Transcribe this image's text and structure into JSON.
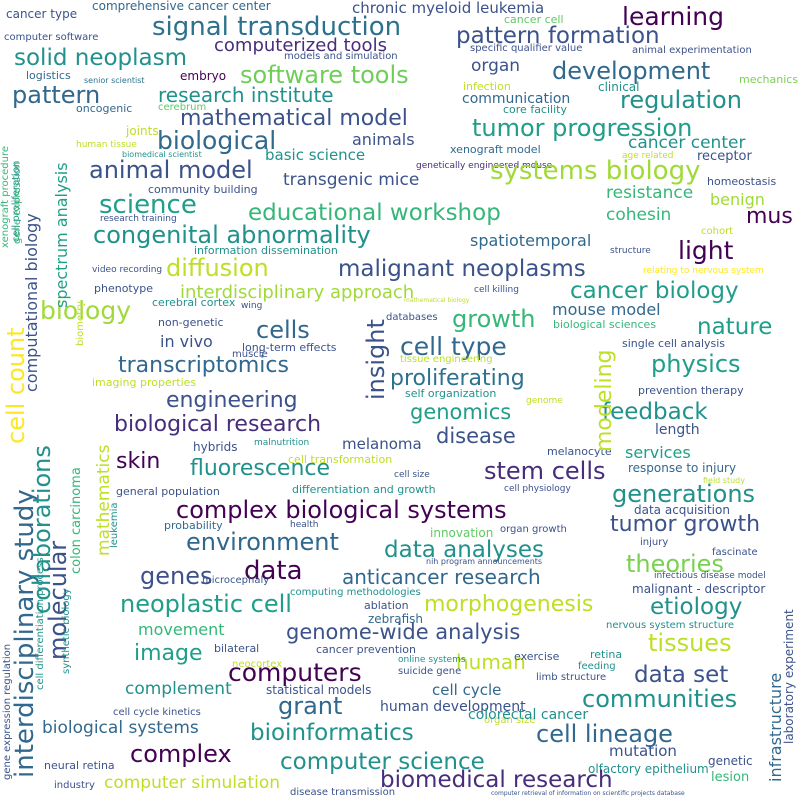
{
  "words": [
    {
      "text": "cancer type",
      "color": "#3b528b",
      "rot": 0
    },
    {
      "text": "comprehensive cancer center",
      "color": "#31688e",
      "rot": 0
    },
    {
      "text": "chronic myeloid leukemia",
      "color": "#3b528b",
      "rot": 0
    },
    {
      "text": "cancer cell",
      "color": "#5ec962",
      "rot": 0
    },
    {
      "text": "learning",
      "color": "#440154",
      "rot": 0
    },
    {
      "text": "computer software",
      "color": "#3b528b",
      "rot": 0
    },
    {
      "text": "signal transduction",
      "color": "#2c728e",
      "rot": 0
    },
    {
      "text": "pattern formation",
      "color": "#3b528b",
      "rot": 0
    },
    {
      "text": "computerized tools",
      "color": "#472d7b",
      "rot": 0
    },
    {
      "text": "specific qualifier value",
      "color": "#3b528b",
      "rot": 0
    },
    {
      "text": "animal experimentation",
      "color": "#3b528b",
      "rot": 0
    },
    {
      "text": "solid neoplasm",
      "color": "#21918c",
      "rot": 0
    },
    {
      "text": "models and simulation",
      "color": "#3b528b",
      "rot": 0
    },
    {
      "text": "organ",
      "color": "#3b528b",
      "rot": 0
    },
    {
      "text": "logistics",
      "color": "#31688e",
      "rot": 0
    },
    {
      "text": "embryo",
      "color": "#440154",
      "rot": 0
    },
    {
      "text": "software tools",
      "color": "#6ece58",
      "rot": 0
    },
    {
      "text": "development",
      "color": "#31688e",
      "rot": 0
    },
    {
      "text": "senior scientist",
      "color": "#2c728e",
      "rot": 0
    },
    {
      "text": "clinical",
      "color": "#21918c",
      "rot": 0
    },
    {
      "text": "mechanics",
      "color": "#7ad151",
      "rot": 0
    },
    {
      "text": "infection",
      "color": "#bddf26",
      "rot": 0
    },
    {
      "text": "pattern",
      "color": "#31688e",
      "rot": 0
    },
    {
      "text": "research institute",
      "color": "#21918c",
      "rot": 0
    },
    {
      "text": "communication",
      "color": "#31688e",
      "rot": 0
    },
    {
      "text": "regulation",
      "color": "#21918c",
      "rot": 0
    },
    {
      "text": "oncogenic",
      "color": "#31688e",
      "rot": 0
    },
    {
      "text": "cerebrum",
      "color": "#5ec962",
      "rot": 0
    },
    {
      "text": "core facility",
      "color": "#21918c",
      "rot": 0
    },
    {
      "text": "mathematical model",
      "color": "#3b528b",
      "rot": 0
    },
    {
      "text": "tumor progression",
      "color": "#1f9e89",
      "rot": 0
    },
    {
      "text": "biological",
      "color": "#31688e",
      "rot": 0
    },
    {
      "text": "joints",
      "color": "#bddf26",
      "rot": 0
    },
    {
      "text": "human tissue",
      "color": "#bddf26",
      "rot": 0
    },
    {
      "text": "cancer center",
      "color": "#21918c",
      "rot": 0
    },
    {
      "text": "biomedical scientist",
      "color": "#21918c",
      "rot": 0
    },
    {
      "text": "animals",
      "color": "#3b528b",
      "rot": 0
    },
    {
      "text": "xenograft model",
      "color": "#31688e",
      "rot": 0
    },
    {
      "text": "age related",
      "color": "#bddf26",
      "rot": 0
    },
    {
      "text": "receptor",
      "color": "#3b528b",
      "rot": 0
    },
    {
      "text": "basic science",
      "color": "#21918c",
      "rot": 0
    },
    {
      "text": "genetically engineered mouse",
      "color": "#472d7b",
      "rot": 0
    },
    {
      "text": "animal model",
      "color": "#3b528b",
      "rot": 0
    },
    {
      "text": "systems biology",
      "color": "#a0da39",
      "rot": 0
    },
    {
      "text": "homeostasis",
      "color": "#3b528b",
      "rot": 0
    },
    {
      "text": "transgenic mice",
      "color": "#3b528b",
      "rot": 0
    },
    {
      "text": "community building",
      "color": "#3b528b",
      "rot": 0
    },
    {
      "text": "resistance",
      "color": "#35b779",
      "rot": 0
    },
    {
      "text": "benign",
      "color": "#a0da39",
      "rot": 0
    },
    {
      "text": "science",
      "color": "#1f9e89",
      "rot": 0
    },
    {
      "text": "educational workshop",
      "color": "#35b779",
      "rot": 0
    },
    {
      "text": "mus",
      "color": "#440154",
      "rot": 0
    },
    {
      "text": "cohesin",
      "color": "#35b779",
      "rot": 0
    },
    {
      "text": "research training",
      "color": "#3b528b",
      "rot": 0
    },
    {
      "text": "congenital abnormality",
      "color": "#21918c",
      "rot": 0
    },
    {
      "text": "cohort",
      "color": "#bddf26",
      "rot": 0
    },
    {
      "text": "spatiotemporal",
      "color": "#31688e",
      "rot": 0
    },
    {
      "text": "information dissemination",
      "color": "#21918c",
      "rot": 0
    },
    {
      "text": "light",
      "color": "#440154",
      "rot": 0
    },
    {
      "text": "structure",
      "color": "#3b528b",
      "rot": 0
    },
    {
      "text": "video recording",
      "color": "#3b528b",
      "rot": 0
    },
    {
      "text": "diffusion",
      "color": "#bddf26",
      "rot": 0
    },
    {
      "text": "malignant neoplasms",
      "color": "#3b528b",
      "rot": 0
    },
    {
      "text": "relating to nervous system",
      "color": "#fde725",
      "rot": 0
    },
    {
      "text": "phenotype",
      "color": "#3b528b",
      "rot": 0
    },
    {
      "text": "interdisciplinary approach",
      "color": "#a0da39",
      "rot": 0
    },
    {
      "text": "cancer biology",
      "color": "#1f9e89",
      "rot": 0
    },
    {
      "text": "wing",
      "color": "#3b528b",
      "rot": 0
    },
    {
      "text": "cerebral cortex",
      "color": "#21918c",
      "rot": 0
    },
    {
      "text": "cell killing",
      "color": "#3b528b",
      "rot": 0
    },
    {
      "text": "mathematical biology",
      "color": "#bddf26",
      "rot": 0
    },
    {
      "text": "biology",
      "color": "#a0da39",
      "rot": 0
    },
    {
      "text": "growth",
      "color": "#35b779",
      "rot": 0
    },
    {
      "text": "mouse model",
      "color": "#31688e",
      "rot": 0
    },
    {
      "text": "non-genetic",
      "color": "#3b528b",
      "rot": 0
    },
    {
      "text": "databases",
      "color": "#3b528b",
      "rot": 0
    },
    {
      "text": "biological sciences",
      "color": "#35b779",
      "rot": 0
    },
    {
      "text": "nature",
      "color": "#1f9e89",
      "rot": 0
    },
    {
      "text": "cells",
      "color": "#31688e",
      "rot": 0
    },
    {
      "text": "in vivo",
      "color": "#3b528b",
      "rot": 0
    },
    {
      "text": "long-term effects",
      "color": "#3b528b",
      "rot": 0
    },
    {
      "text": "cell type",
      "color": "#31688e",
      "rot": 0
    },
    {
      "text": "single cell analysis",
      "color": "#3b528b",
      "rot": 0
    },
    {
      "text": "transcriptomics",
      "color": "#31688e",
      "rot": 0
    },
    {
      "text": "muscle",
      "color": "#3b528b",
      "rot": 0
    },
    {
      "text": "tissue engineering",
      "color": "#bddf26",
      "rot": 0
    },
    {
      "text": "physics",
      "color": "#1f9e89",
      "rot": 0
    },
    {
      "text": "imaging properties",
      "color": "#bddf26",
      "rot": 0
    },
    {
      "text": "proliferating",
      "color": "#2c728e",
      "rot": 0
    },
    {
      "text": "self organization",
      "color": "#21918c",
      "rot": 0
    },
    {
      "text": "prevention therapy",
      "color": "#3b528b",
      "rot": 0
    },
    {
      "text": "engineering",
      "color": "#3b528b",
      "rot": 0
    },
    {
      "text": "genome",
      "color": "#bddf26",
      "rot": 0
    },
    {
      "text": "genomics",
      "color": "#1f9e89",
      "rot": 0
    },
    {
      "text": "feedback",
      "color": "#21918c",
      "rot": 0
    },
    {
      "text": "biological research",
      "color": "#472d7b",
      "rot": 0
    },
    {
      "text": "disease",
      "color": "#3b528b",
      "rot": 0
    },
    {
      "text": "length",
      "color": "#3b528b",
      "rot": 0
    },
    {
      "text": "skin",
      "color": "#440154",
      "rot": 0
    },
    {
      "text": "melanoma",
      "color": "#3b528b",
      "rot": 0
    },
    {
      "text": "hybrids",
      "color": "#3b528b",
      "rot": 0
    },
    {
      "text": "malnutrition",
      "color": "#21918c",
      "rot": 0
    },
    {
      "text": "melanocyte",
      "color": "#3b528b",
      "rot": 0
    },
    {
      "text": "services",
      "color": "#1f9e89",
      "rot": 0
    },
    {
      "text": "fluorescence",
      "color": "#21918c",
      "rot": 0
    },
    {
      "text": "cell transformation",
      "color": "#bddf26",
      "rot": 0
    },
    {
      "text": "stem cells",
      "color": "#472d7b",
      "rot": 0
    },
    {
      "text": "response to injury",
      "color": "#31688e",
      "rot": 0
    },
    {
      "text": "cell size",
      "color": "#3b528b",
      "rot": 0
    },
    {
      "text": "field study",
      "color": "#bddf26",
      "rot": 0
    },
    {
      "text": "general population",
      "color": "#3b528b",
      "rot": 0
    },
    {
      "text": "differentiation and growth",
      "color": "#21918c",
      "rot": 0
    },
    {
      "text": "cell physiology",
      "color": "#3b528b",
      "rot": 0
    },
    {
      "text": "generations",
      "color": "#21918c",
      "rot": 0
    },
    {
      "text": "complex biological systems",
      "color": "#440154",
      "rot": 0
    },
    {
      "text": "data acquisition",
      "color": "#3b528b",
      "rot": 0
    },
    {
      "text": "probability",
      "color": "#31688e",
      "rot": 0
    },
    {
      "text": "health",
      "color": "#3b528b",
      "rot": 0
    },
    {
      "text": "tumor growth",
      "color": "#3b528b",
      "rot": 0
    },
    {
      "text": "innovation",
      "color": "#5ec962",
      "rot": 0
    },
    {
      "text": "organ growth",
      "color": "#3b528b",
      "rot": 0
    },
    {
      "text": "injury",
      "color": "#3b528b",
      "rot": 0
    },
    {
      "text": "environment",
      "color": "#31688e",
      "rot": 0
    },
    {
      "text": "fascinate",
      "color": "#3b528b",
      "rot": 0
    },
    {
      "text": "data analyses",
      "color": "#21918c",
      "rot": 0
    },
    {
      "text": "theories",
      "color": "#7ad151",
      "rot": 0
    },
    {
      "text": "nih program announcements",
      "color": "#3b528b",
      "rot": 0
    },
    {
      "text": "genes",
      "color": "#3b528b",
      "rot": 0
    },
    {
      "text": "data",
      "color": "#440154",
      "rot": 0
    },
    {
      "text": "microcephaly",
      "color": "#3b528b",
      "rot": 0
    },
    {
      "text": "infectious disease model",
      "color": "#3b528b",
      "rot": 0
    },
    {
      "text": "anticancer research",
      "color": "#31688e",
      "rot": 0
    },
    {
      "text": "malignant - descriptor",
      "color": "#3b528b",
      "rot": 0
    },
    {
      "text": "computing methodologies",
      "color": "#21918c",
      "rot": 0
    },
    {
      "text": "ablation",
      "color": "#3b528b",
      "rot": 0
    },
    {
      "text": "neoplastic cell",
      "color": "#1f9e89",
      "rot": 0
    },
    {
      "text": "morphogenesis",
      "color": "#bddf26",
      "rot": 0
    },
    {
      "text": "etiology",
      "color": "#21918c",
      "rot": 0
    },
    {
      "text": "zebrafish",
      "color": "#31688e",
      "rot": 0
    },
    {
      "text": "nervous system structure",
      "color": "#21918c",
      "rot": 0
    },
    {
      "text": "movement",
      "color": "#35b779",
      "rot": 0
    },
    {
      "text": "genome-wide analysis",
      "color": "#3b528b",
      "rot": 0
    },
    {
      "text": "image",
      "color": "#1f9e89",
      "rot": 0
    },
    {
      "text": "tissues",
      "color": "#bddf26",
      "rot": 0
    },
    {
      "text": "bilateral",
      "color": "#3b528b",
      "rot": 0
    },
    {
      "text": "cancer prevention",
      "color": "#3b528b",
      "rot": 0
    },
    {
      "text": "neocortex",
      "color": "#bddf26",
      "rot": 0
    },
    {
      "text": "human",
      "color": "#bddf26",
      "rot": 0
    },
    {
      "text": "exercise",
      "color": "#3b528b",
      "rot": 0
    },
    {
      "text": "retina",
      "color": "#21918c",
      "rot": 0
    },
    {
      "text": "online systems",
      "color": "#21918c",
      "rot": 0
    },
    {
      "text": "feeding",
      "color": "#21918c",
      "rot": 0
    },
    {
      "text": "complement",
      "color": "#21918c",
      "rot": 0
    },
    {
      "text": "computers",
      "color": "#440154",
      "rot": 0
    },
    {
      "text": "suicide gene",
      "color": "#3b528b",
      "rot": 0
    },
    {
      "text": "limb structure",
      "color": "#3b528b",
      "rot": 0
    },
    {
      "text": "data set",
      "color": "#3b528b",
      "rot": 0
    },
    {
      "text": "statistical models",
      "color": "#3b528b",
      "rot": 0
    },
    {
      "text": "cell cycle",
      "color": "#31688e",
      "rot": 0
    },
    {
      "text": "communities",
      "color": "#21918c",
      "rot": 0
    },
    {
      "text": "grant",
      "color": "#31688e",
      "rot": 0
    },
    {
      "text": "human development",
      "color": "#3b528b",
      "rot": 0
    },
    {
      "text": "organ size",
      "color": "#bddf26",
      "rot": 0
    },
    {
      "text": "cell cycle kinetics",
      "color": "#3b528b",
      "rot": 0
    },
    {
      "text": "colorectal cancer",
      "color": "#21918c",
      "rot": 0
    },
    {
      "text": "biological systems",
      "color": "#31688e",
      "rot": 0
    },
    {
      "text": "bioinformatics",
      "color": "#21918c",
      "rot": 0
    },
    {
      "text": "cell lineage",
      "color": "#31688e",
      "rot": 0
    },
    {
      "text": "complex",
      "color": "#440154",
      "rot": 0
    },
    {
      "text": "mutation",
      "color": "#3b528b",
      "rot": 0
    },
    {
      "text": "genetic",
      "color": "#3b528b",
      "rot": 0
    },
    {
      "text": "computer science",
      "color": "#21918c",
      "rot": 0
    },
    {
      "text": "neural retina",
      "color": "#3b528b",
      "rot": 0
    },
    {
      "text": "olfactory epithelium",
      "color": "#21918c",
      "rot": 0
    },
    {
      "text": "lesion",
      "color": "#35b779",
      "rot": 0
    },
    {
      "text": "computer simulation",
      "color": "#bddf26",
      "rot": 0
    },
    {
      "text": "biomedical research",
      "color": "#472d7b",
      "rot": 0
    },
    {
      "text": "industry",
      "color": "#3b528b",
      "rot": 0
    },
    {
      "text": "disease transmission",
      "color": "#3b528b",
      "rot": 0
    },
    {
      "text": "computer retrieval of information on scientific projects database",
      "color": "#3b528b",
      "rot": 0
    },
    {
      "text": "cell count",
      "color": "#fde725",
      "rot": 90
    },
    {
      "text": "interdisciplinary study",
      "color": "#31688e",
      "rot": 90
    },
    {
      "text": "computational biology",
      "color": "#3b528b",
      "rot": 90
    },
    {
      "text": "spectrum analysis",
      "color": "#1f9e89",
      "rot": 90
    },
    {
      "text": "collaborations",
      "color": "#21918c",
      "rot": 90
    },
    {
      "text": "molecular",
      "color": "#3b528b",
      "rot": 90
    },
    {
      "text": "mathematics",
      "color": "#bddf26",
      "rot": 90
    },
    {
      "text": "colon carcinoma",
      "color": "#35b779",
      "rot": 90
    },
    {
      "text": "xenograft procedure",
      "color": "#35b779",
      "rot": 90
    },
    {
      "text": "cell proliferation",
      "color": "#21918c",
      "rot": 90
    },
    {
      "text": "gene expression",
      "color": "#35b779",
      "rot": 90
    },
    {
      "text": "gene expression regulation",
      "color": "#3b528b",
      "rot": 90
    },
    {
      "text": "cell differentiation process",
      "color": "#21918c",
      "rot": 90
    },
    {
      "text": "synthetic biology",
      "color": "#21918c",
      "rot": 90
    },
    {
      "text": "biometry",
      "color": "#bddf26",
      "rot": 90
    },
    {
      "text": "leukemia",
      "color": "#21918c",
      "rot": 90
    },
    {
      "text": "insight",
      "color": "#3b528b",
      "rot": 90
    },
    {
      "text": "modeling",
      "color": "#bddf26",
      "rot": 90
    },
    {
      "text": "infrastructure",
      "color": "#31688e",
      "rot": 90
    },
    {
      "text": "laboratory experiment",
      "color": "#3b528b",
      "rot": 90
    }
  ]
}
